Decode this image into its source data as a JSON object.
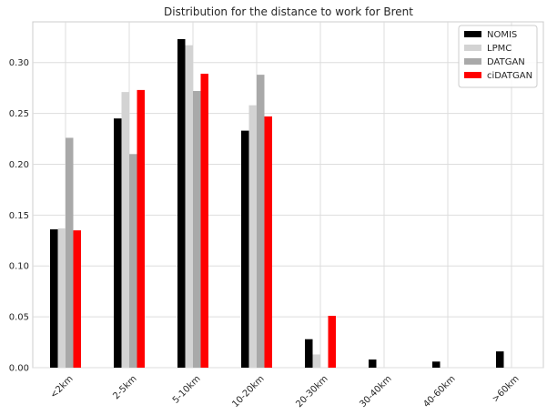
{
  "chart_data": {
    "type": "bar",
    "title": "Distribution for the distance to work for Brent",
    "xlabel": "",
    "ylabel": "",
    "categories": [
      "<2km",
      "2-5km",
      "5-10km",
      "10-20km",
      "20-30km",
      "30-40km",
      "40-60km",
      ">60km"
    ],
    "series": [
      {
        "name": "NOMIS",
        "color": "#000000",
        "values": [
          0.136,
          0.245,
          0.323,
          0.233,
          0.028,
          0.008,
          0.006,
          0.016
        ]
      },
      {
        "name": "LPMC",
        "color": "#d3d3d3",
        "values": [
          0.137,
          0.271,
          0.317,
          0.258,
          0.013,
          0.0,
          0.0,
          0.0
        ]
      },
      {
        "name": "DATGAN",
        "color": "#a9a9a9",
        "values": [
          0.226,
          0.21,
          0.272,
          0.288,
          0.0,
          0.0,
          0.0,
          0.0
        ]
      },
      {
        "name": "ciDATGAN",
        "color": "#ff0000",
        "values": [
          0.135,
          0.273,
          0.289,
          0.247,
          0.051,
          0.0,
          0.0,
          0.0
        ]
      }
    ],
    "ylim": [
      0,
      0.34
    ],
    "yticks": [
      "0.00",
      "0.05",
      "0.10",
      "0.15",
      "0.20",
      "0.25",
      "0.30"
    ],
    "grid": true,
    "legend_position": "top-right"
  }
}
